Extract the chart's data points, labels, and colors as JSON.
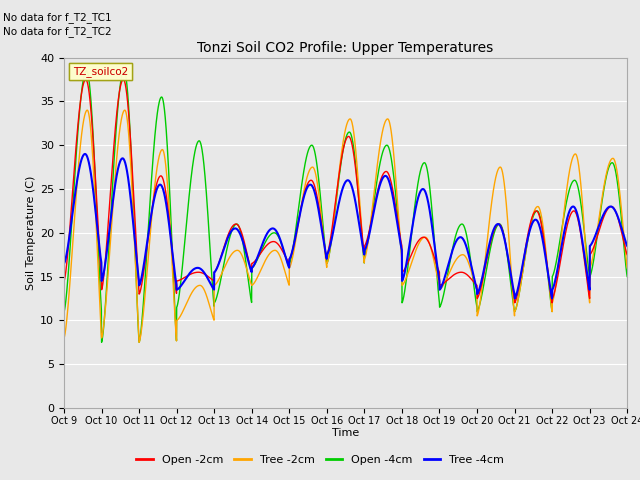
{
  "title": "Tonzi Soil CO2 Profile: Upper Temperatures",
  "ylabel": "Soil Temperature (C)",
  "xlabel": "Time",
  "annotations": [
    "No data for f_T2_TC1",
    "No data for f_T2_TC2"
  ],
  "legend_label": "TZ_soilco2",
  "xlim": [
    0,
    15
  ],
  "ylim": [
    0,
    40
  ],
  "yticks": [
    0,
    5,
    10,
    15,
    20,
    25,
    30,
    35,
    40
  ],
  "xtick_positions": [
    0,
    1,
    2,
    3,
    4,
    5,
    6,
    7,
    8,
    9,
    10,
    11,
    12,
    13,
    14,
    15
  ],
  "xtick_labels": [
    "Oct 9",
    "Oct 10",
    "Oct 11",
    "Oct 12",
    "Oct 13",
    "Oct 14",
    "Oct 15",
    "Oct 16",
    "Oct 17",
    "Oct 18",
    "Oct 19",
    "Oct 20",
    "Oct 21",
    "Oct 22",
    "Oct 23",
    "Oct 24"
  ],
  "colors": {
    "open_2cm": "#ff0000",
    "tree_2cm": "#ffa500",
    "open_4cm": "#00cc00",
    "tree_4cm": "#0000ff"
  },
  "labels": [
    "Open -2cm",
    "Tree -2cm",
    "Open -4cm",
    "Tree -4cm"
  ],
  "bg_color": "#e8e8e8",
  "fig_bg": "#e8e8e8",
  "grid_color": "#ffffff",
  "lw": 1.0
}
